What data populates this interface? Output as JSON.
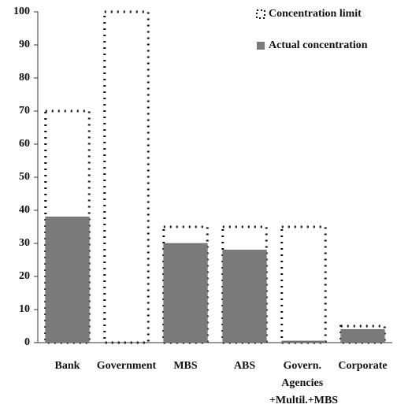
{
  "chart_data": {
    "type": "bar",
    "categories": [
      "Bank",
      "Government",
      "MBS",
      "ABS",
      "Govern. Agencies +Multil.+MBS",
      "Corporate"
    ],
    "series": [
      {
        "name": "Concentration limit",
        "color": "#111111",
        "style": "dashed-outline",
        "values": [
          70,
          100,
          35,
          35,
          35,
          5
        ]
      },
      {
        "name": "Actual concentration",
        "color": "#7a7a7a",
        "style": "filled",
        "values": [
          38,
          0,
          30,
          28,
          0.5,
          4
        ]
      }
    ],
    "ylim": [
      0,
      100
    ],
    "yticks": [
      0,
      10,
      20,
      30,
      40,
      50,
      60,
      70,
      80,
      90,
      100
    ],
    "grid": false,
    "legend": "top-right"
  }
}
